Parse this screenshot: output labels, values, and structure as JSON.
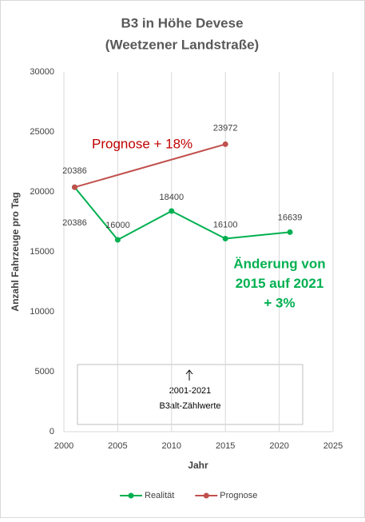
{
  "chart_data": {
    "type": "line",
    "title": [
      "B3 in Höhe Devese",
      "(Weetzener Landstraße)"
    ],
    "x_label": "Jahr",
    "y_label": "Anzahl Fahrzeuge pro Tag",
    "xlim": [
      2000,
      2025
    ],
    "xticks": [
      2000,
      2005,
      2010,
      2015,
      2020,
      2025
    ],
    "ylim": [
      0,
      30000
    ],
    "yticks": [
      0,
      5000,
      10000,
      15000,
      20000,
      25000,
      30000
    ],
    "grid": "x",
    "legend": "bottom",
    "series": [
      {
        "name": "Realität",
        "color": "#00b050",
        "x": [
          2001,
          2005,
          2010,
          2015,
          2021
        ],
        "values": [
          20386,
          16000,
          18400,
          16100,
          16639
        ]
      },
      {
        "name": "Prognose",
        "color": "#c0504d",
        "x": [
          2001,
          2015
        ],
        "values": [
          20386,
          23972
        ]
      }
    ],
    "annotations": {
      "prognose": {
        "text": "Prognose + 18%",
        "color": "#c00000"
      },
      "change": {
        "lines": [
          "Änderung von",
          "2015 auf 2021",
          "+ 3%"
        ],
        "color": "#00b050"
      },
      "box": [
        "2001-2021",
        "B3alt-Zählwerte"
      ]
    }
  }
}
